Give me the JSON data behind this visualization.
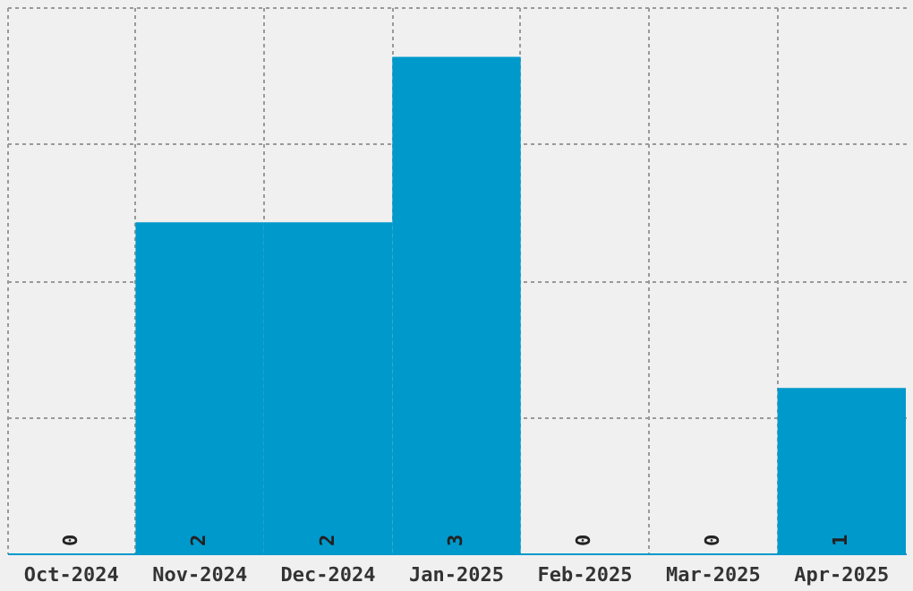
{
  "chart_data": {
    "type": "bar",
    "categories": [
      "Oct-2024",
      "Nov-2024",
      "Dec-2024",
      "Jan-2025",
      "Feb-2025",
      "Mar-2025",
      "Apr-2025"
    ],
    "values": [
      0,
      2,
      2,
      3,
      0,
      0,
      1
    ],
    "color": "#0099cc",
    "data_labels": true,
    "ylim": [
      0,
      3.3
    ],
    "yticks": [
      {
        "value": 0.825,
        "label": null
      },
      {
        "value": 1.65,
        "label": null
      },
      {
        "value": 2.475,
        "label": null
      },
      {
        "value": 3.3,
        "label": null
      }
    ],
    "tick_labels": "x",
    "grid": true
  }
}
